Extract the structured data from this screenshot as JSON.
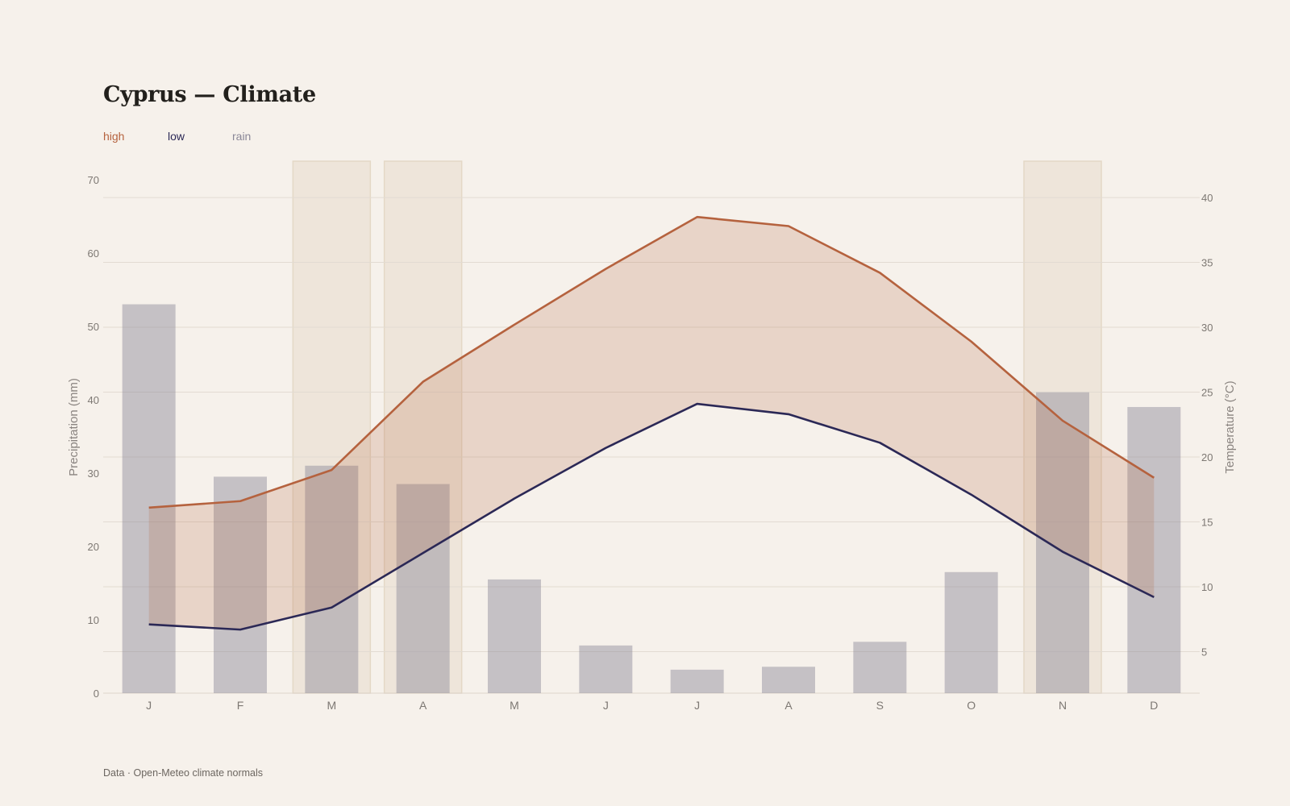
{
  "title": "Cyprus — Climate",
  "legend": {
    "high": "high",
    "low": "low",
    "rain": "rain"
  },
  "footer": "Data · Open-Meteo climate normals",
  "colors": {
    "background": "#f6f1eb",
    "high": "#b5623e",
    "low": "#2b2856",
    "rain": "#8a8797",
    "band": "#e4d8c6"
  },
  "chart_data": {
    "type": "bar+line",
    "categories": [
      "J",
      "F",
      "M",
      "A",
      "M",
      "J",
      "J",
      "A",
      "S",
      "O",
      "N",
      "D"
    ],
    "precipitation": {
      "name": "rain",
      "values": [
        53,
        29.5,
        31,
        28.5,
        15.5,
        6.5,
        3.2,
        3.6,
        7,
        16.5,
        41,
        39
      ]
    },
    "temperature_high": {
      "name": "high",
      "values": [
        16.1,
        16.6,
        19,
        25.8,
        30.2,
        34.5,
        38.5,
        37.8,
        34.2,
        28.9,
        22.8,
        18.4
      ]
    },
    "temperature_low": {
      "name": "low",
      "values": [
        7.1,
        6.7,
        8.4,
        12.6,
        16.8,
        20.7,
        24.1,
        23.3,
        21.1,
        17.1,
        12.7,
        9.2
      ]
    },
    "highlighted_months": [
      2,
      3,
      10
    ],
    "y_left": {
      "label": "Precipitation (mm)",
      "range": [
        0,
        72.5
      ],
      "ticks": [
        0,
        10,
        20,
        30,
        40,
        50,
        60,
        70
      ]
    },
    "y_right": {
      "label": "Temperature (°C)",
      "range": [
        1.8,
        42.8
      ],
      "ticks": [
        5,
        10,
        15,
        20,
        25,
        30,
        35,
        40
      ]
    },
    "grid": true,
    "legend_position": "top-left"
  }
}
